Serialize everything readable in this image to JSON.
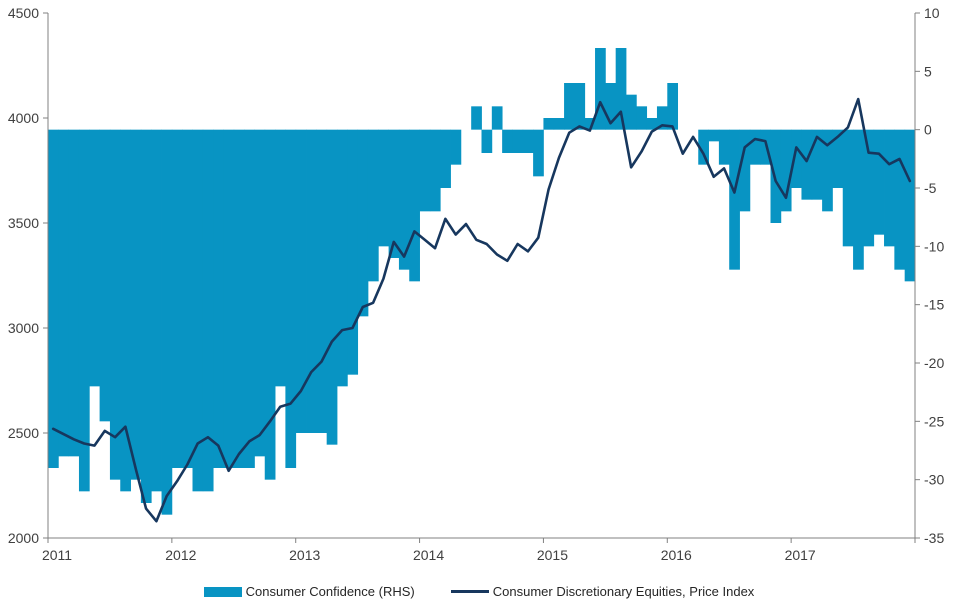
{
  "chart_data": {
    "type": "combo",
    "title": "",
    "grid": false,
    "plot_background": "#ffffff",
    "categories": [
      "2011-01",
      "2011-02",
      "2011-03",
      "2011-04",
      "2011-05",
      "2011-06",
      "2011-07",
      "2011-08",
      "2011-09",
      "2011-10",
      "2011-11",
      "2011-12",
      "2012-01",
      "2012-02",
      "2012-03",
      "2012-04",
      "2012-05",
      "2012-06",
      "2012-07",
      "2012-08",
      "2012-09",
      "2012-10",
      "2012-11",
      "2012-12",
      "2013-01",
      "2013-02",
      "2013-03",
      "2013-04",
      "2013-05",
      "2013-06",
      "2013-07",
      "2013-08",
      "2013-09",
      "2013-10",
      "2013-11",
      "2013-12",
      "2014-01",
      "2014-02",
      "2014-03",
      "2014-04",
      "2014-05",
      "2014-06",
      "2014-07",
      "2014-08",
      "2014-09",
      "2014-10",
      "2014-11",
      "2014-12",
      "2015-01",
      "2015-02",
      "2015-03",
      "2015-04",
      "2015-05",
      "2015-06",
      "2015-07",
      "2015-08",
      "2015-09",
      "2015-10",
      "2015-11",
      "2015-12",
      "2016-01",
      "2016-02",
      "2016-03",
      "2016-04",
      "2016-05",
      "2016-06",
      "2016-07",
      "2016-08",
      "2016-09",
      "2016-10",
      "2016-11",
      "2016-12",
      "2017-01",
      "2017-02",
      "2017-03",
      "2017-04",
      "2017-05",
      "2017-06",
      "2017-07",
      "2017-08",
      "2017-09",
      "2017-10",
      "2017-11",
      "2017-12"
    ],
    "series": [
      {
        "name": "Consumer Confidence (RHS)",
        "type": "bar",
        "axis": "right",
        "color": "#0894C3",
        "values": [
          -29,
          -28,
          -28,
          -31,
          -22,
          -25,
          -30,
          -31,
          -30,
          -32,
          -31,
          -33,
          -29,
          -29,
          -31,
          -31,
          -29,
          -29,
          -29,
          -29,
          -28,
          -30,
          -22,
          -29,
          -26,
          -26,
          -26,
          -27,
          -22,
          -21,
          -16,
          -13,
          -10,
          -11,
          -12,
          -13,
          -7,
          -7,
          -5,
          -3,
          0,
          2,
          -2,
          2,
          -2,
          -2,
          -2,
          -4,
          1,
          1,
          4,
          4,
          1,
          7,
          4,
          7,
          3,
          2,
          1,
          2,
          4,
          0,
          0,
          -3,
          -1,
          -3,
          -12,
          -7,
          -3,
          -3,
          -8,
          -7,
          -5,
          -6,
          -6,
          -7,
          -5,
          -10,
          -12,
          -10,
          -9,
          -10,
          -12,
          -13
        ]
      },
      {
        "name": "Consumer Discretionary Equities, Price Index",
        "type": "line",
        "axis": "left",
        "color": "#17375E",
        "values": [
          2520,
          2495,
          2470,
          2450,
          2440,
          2510,
          2480,
          2530,
          2330,
          2140,
          2080,
          2200,
          2270,
          2350,
          2450,
          2480,
          2440,
          2320,
          2400,
          2460,
          2490,
          2555,
          2625,
          2640,
          2700,
          2790,
          2840,
          2935,
          2990,
          3000,
          3100,
          3120,
          3235,
          3410,
          3340,
          3460,
          3420,
          3380,
          3520,
          3445,
          3495,
          3420,
          3400,
          3350,
          3320,
          3400,
          3365,
          3430,
          3660,
          3810,
          3930,
          3960,
          3940,
          4075,
          3975,
          4030,
          3765,
          3840,
          3935,
          3965,
          3960,
          3830,
          3910,
          3830,
          3720,
          3760,
          3645,
          3860,
          3900,
          3890,
          3700,
          3620,
          3860,
          3795,
          3910,
          3870,
          3910,
          3955,
          4090,
          3835,
          3830,
          3780,
          3805,
          3700
        ]
      }
    ],
    "left_axis": {
      "min": 2000,
      "max": 4500,
      "tick_labels": [
        "4500",
        "4000",
        "3500",
        "3000",
        "2500",
        "2000"
      ],
      "tick_values": [
        4500,
        4000,
        3500,
        3000,
        2500,
        2000
      ]
    },
    "right_axis": {
      "min": -35,
      "max": 10,
      "tick_labels": [
        "10",
        "5",
        "0",
        "-5",
        "-10",
        "-15",
        "-20",
        "-25",
        "-30",
        "-35"
      ],
      "tick_values": [
        10,
        5,
        0,
        -5,
        -10,
        -15,
        -20,
        -25,
        -30,
        -35
      ]
    },
    "x_axis": {
      "year_labels": [
        "2011",
        "2012",
        "2013",
        "2014",
        "2015",
        "2016",
        "2017"
      ]
    },
    "legend_position": "bottom"
  },
  "colors": {
    "bar": "#0894C3",
    "line": "#17375E",
    "axis": "#808080",
    "tick_text": "#404040"
  }
}
